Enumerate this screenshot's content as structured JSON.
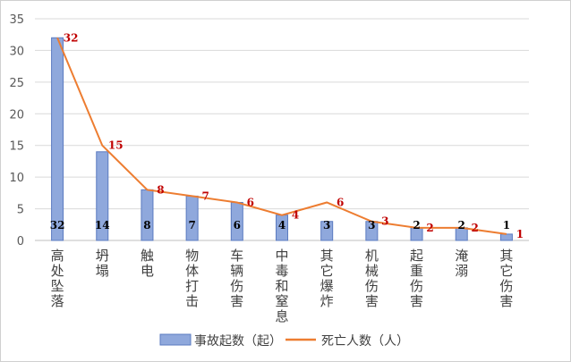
{
  "chart_data": {
    "type": "bar",
    "categories": [
      "高处坠落",
      "坍塌",
      "触电",
      "物体打击",
      "车辆伤害",
      "中毒和窒息",
      "其它爆炸",
      "机械伤害",
      "起重伤害",
      "淹溺",
      "其它伤害"
    ],
    "series": [
      {
        "name": "事故起数（起）",
        "type": "bar",
        "values": [
          32,
          14,
          8,
          7,
          6,
          4,
          3,
          3,
          2,
          2,
          1
        ],
        "color": "#8FA8DC"
      },
      {
        "name": "死亡人数（人）",
        "type": "line",
        "values": [
          32,
          15,
          8,
          7,
          6,
          4,
          6,
          3,
          2,
          2,
          1
        ],
        "color": "#ED7D31"
      }
    ],
    "yticks": [
      0,
      5,
      10,
      15,
      20,
      25,
      30,
      35
    ],
    "ylim": [
      0,
      35
    ],
    "grid": true,
    "legend": "bottom",
    "label_colors": {
      "bar": "#000000",
      "line": "#C00000"
    }
  }
}
